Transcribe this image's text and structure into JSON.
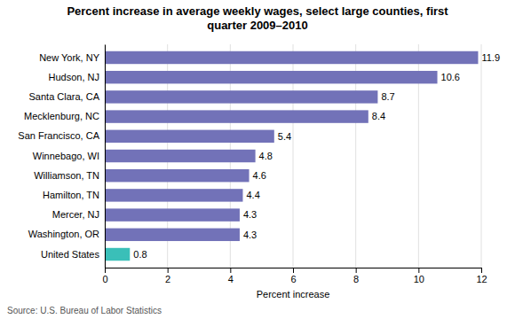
{
  "chart_data": {
    "type": "bar",
    "orientation": "horizontal",
    "title": "Percent increase in average weekly wages, select large counties, first\nquarter 2009–2010",
    "categories": [
      "New York, NY",
      "Hudson, NJ",
      "Santa Clara, CA",
      "Mecklenburg, NC",
      "San Francisco, CA",
      "Winnebago, WI",
      "Williamson, TN",
      "Hamilton, TN",
      "Mercer, NJ",
      "Washington, OR",
      "United States"
    ],
    "values": [
      11.9,
      10.6,
      8.7,
      8.4,
      5.4,
      4.8,
      4.6,
      4.4,
      4.3,
      4.3,
      0.8
    ],
    "colors": [
      "#7272b8",
      "#7272b8",
      "#7272b8",
      "#7272b8",
      "#7272b8",
      "#7272b8",
      "#7272b8",
      "#7272b8",
      "#7272b8",
      "#7272b8",
      "#3abfb8"
    ],
    "xlabel": "Percent increase",
    "xlim": [
      0,
      12
    ],
    "xticks": [
      0,
      2,
      4,
      6,
      8,
      10,
      12
    ],
    "grid": true,
    "data_labels": true,
    "annotations": [
      "Source: U.S. Bureau of Labor Statistics"
    ]
  }
}
